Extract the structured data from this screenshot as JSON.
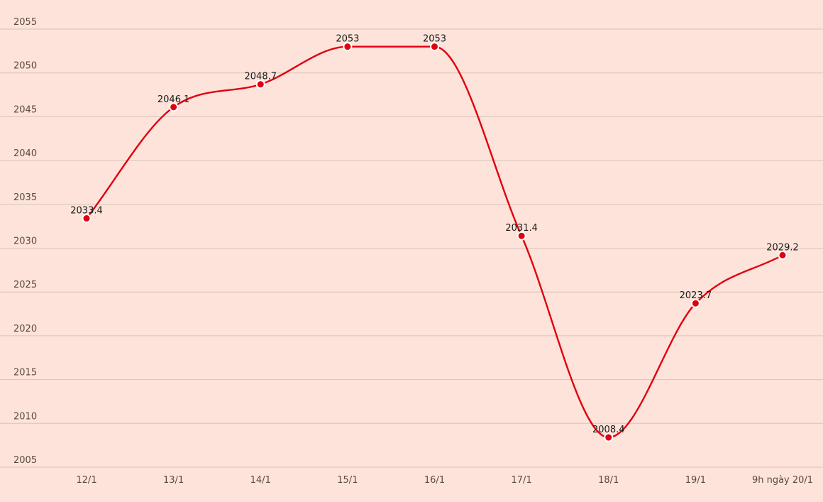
{
  "chart_data": {
    "type": "line",
    "categories": [
      "12/1",
      "13/1",
      "14/1",
      "15/1",
      "16/1",
      "17/1",
      "18/1",
      "19/1",
      "9h ngày 20/1"
    ],
    "series": [
      {
        "values": [
          2033.4,
          2046.1,
          2048.7,
          2053,
          2053,
          2031.4,
          2008.4,
          2023.7,
          2029.2
        ],
        "labels": [
          "2033.4",
          "2046.1",
          "2048.7",
          "2053",
          "2053",
          "2031.4",
          "2008.4",
          "2023.7",
          "2029.2"
        ],
        "color": "#e0000f"
      }
    ],
    "ylim": [
      2005,
      2055
    ],
    "yticks": [
      "2005",
      "2010",
      "2015",
      "2020",
      "2025",
      "2030",
      "2035",
      "2040",
      "2045",
      "2050",
      "2055"
    ],
    "grid": "horizontal",
    "background": "#fde3d9"
  }
}
